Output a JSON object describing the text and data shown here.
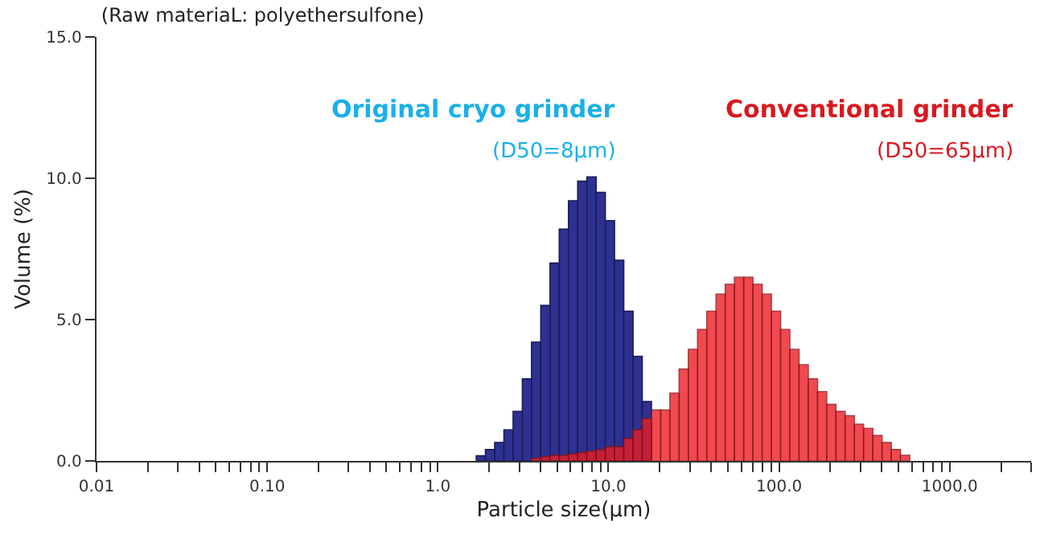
{
  "chart_data": {
    "type": "histogram",
    "title": "(Raw materiaL: polyethersulfone)",
    "xlabel": "Particle size(μm)",
    "ylabel": "Volume (%)",
    "bins": [
      1.68,
      1.902,
      2.154,
      2.44,
      2.763,
      3.13,
      3.544,
      4.014,
      4.546,
      5.149,
      5.831,
      6.604,
      7.479,
      8.471,
      9.592,
      10.86,
      12.3,
      13.94,
      15.78,
      17.87,
      20.24,
      22.93,
      25.96,
      29.41,
      33.3,
      37.72,
      42.72,
      48.38,
      54.79,
      62.05,
      70.28,
      79.6,
      90.13,
      102.1,
      115.6,
      130.9,
      148.3,
      168.0,
      190.2,
      215.4,
      243.9,
      276.3,
      312.9,
      354.4,
      401.3,
      454.5,
      514.6,
      583.0
    ],
    "series": [
      {
        "name": "Original cryo grinder",
        "color": "#2e3192",
        "values": [
          0.18,
          0.4,
          0.65,
          1.1,
          1.75,
          2.9,
          4.2,
          5.5,
          7.0,
          8.2,
          9.2,
          9.9,
          10.05,
          9.5,
          8.5,
          7.1,
          5.3,
          3.7,
          2.1,
          null,
          null,
          null,
          null,
          null,
          null,
          null,
          null,
          null,
          null,
          null,
          null,
          null,
          null,
          null,
          null,
          null,
          null,
          null,
          null,
          null,
          null,
          null,
          null,
          null,
          null,
          null,
          null
        ]
      },
      {
        "name": "Conventional grinder",
        "color": "#ed1c24",
        "values": [
          null,
          null,
          null,
          null,
          null,
          null,
          0.1,
          0.15,
          0.2,
          0.2,
          0.25,
          0.3,
          0.35,
          0.4,
          0.5,
          0.5,
          0.8,
          1.1,
          1.5,
          1.8,
          1.8,
          2.4,
          3.25,
          3.95,
          4.65,
          5.3,
          5.9,
          6.25,
          6.5,
          6.5,
          6.25,
          5.9,
          5.3,
          4.65,
          3.95,
          3.4,
          2.9,
          2.45,
          2.0,
          1.75,
          1.6,
          1.3,
          1.15,
          0.9,
          0.65,
          0.4,
          0.2
        ]
      }
    ],
    "annotations": [
      "(D50=8μm)",
      "(D50=65μm)"
    ],
    "log": "x",
    "xlim": [
      0.01,
      3000
    ],
    "xticks": [
      {
        "value": 0.01,
        "label": "0.01"
      },
      {
        "value": 0.02,
        "label": null
      },
      {
        "value": 0.03,
        "label": null
      },
      {
        "value": 0.04,
        "label": null
      },
      {
        "value": 0.05,
        "label": null
      },
      {
        "value": 0.06,
        "label": null
      },
      {
        "value": 0.07,
        "label": null
      },
      {
        "value": 0.08,
        "label": null
      },
      {
        "value": 0.09,
        "label": null
      },
      {
        "value": 0.1,
        "label": "0.10"
      },
      {
        "value": 0.2,
        "label": null
      },
      {
        "value": 0.3,
        "label": null
      },
      {
        "value": 0.4,
        "label": null
      },
      {
        "value": 0.5,
        "label": null
      },
      {
        "value": 0.6,
        "label": null
      },
      {
        "value": 0.7,
        "label": null
      },
      {
        "value": 0.8,
        "label": null
      },
      {
        "value": 0.9,
        "label": null
      },
      {
        "value": 1,
        "label": "1.0"
      },
      {
        "value": 2,
        "label": null
      },
      {
        "value": 3,
        "label": null
      },
      {
        "value": 4,
        "label": null
      },
      {
        "value": 5,
        "label": null
      },
      {
        "value": 6,
        "label": null
      },
      {
        "value": 7,
        "label": null
      },
      {
        "value": 8,
        "label": null
      },
      {
        "value": 9,
        "label": null
      },
      {
        "value": 10,
        "label": "10.0"
      },
      {
        "value": 20,
        "label": null
      },
      {
        "value": 30,
        "label": null
      },
      {
        "value": 40,
        "label": null
      },
      {
        "value": 50,
        "label": null
      },
      {
        "value": 60,
        "label": null
      },
      {
        "value": 70,
        "label": null
      },
      {
        "value": 80,
        "label": null
      },
      {
        "value": 90,
        "label": null
      },
      {
        "value": 100,
        "label": "100.0"
      },
      {
        "value": 200,
        "label": null
      },
      {
        "value": 300,
        "label": null
      },
      {
        "value": 400,
        "label": null
      },
      {
        "value": 500,
        "label": null
      },
      {
        "value": 600,
        "label": null
      },
      {
        "value": 700,
        "label": null
      },
      {
        "value": 800,
        "label": null
      },
      {
        "value": 900,
        "label": null
      },
      {
        "value": 1000,
        "label": "1000.0"
      },
      {
        "value": 2000,
        "label": null
      },
      {
        "value": 3000,
        "label": null
      }
    ],
    "ylim": [
      0,
      15
    ],
    "yticks": [
      {
        "value": 0,
        "label": "0.0"
      },
      {
        "value": 5,
        "label": "5.0"
      },
      {
        "value": 10,
        "label": "10.0"
      },
      {
        "value": 15,
        "label": "15.0"
      }
    ]
  }
}
